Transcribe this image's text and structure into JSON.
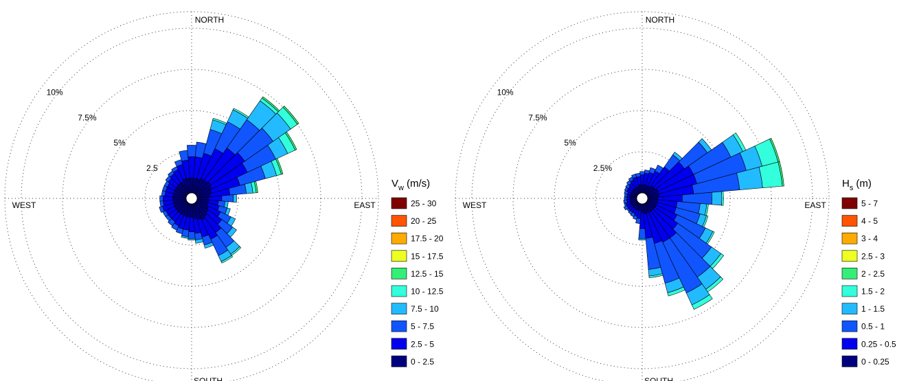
{
  "chart_data": [
    {
      "type": "windrose",
      "quantity": "V",
      "quantity_sub": "w",
      "unit": "(m/s)",
      "directions": {
        "north": "NORTH",
        "east": "EAST",
        "south": "SOUTH",
        "west": "WEST"
      },
      "ring_labels": [
        "2.5",
        "5%",
        "7.5%",
        "10%"
      ],
      "ring_values": [
        2.5,
        5,
        7.5,
        10
      ],
      "rmax": 11,
      "legend_bins": [
        "25 - 30",
        "20 - 25",
        "17.5 - 20",
        "15 - 17.5",
        "12.5 - 15",
        "10 - 12.5",
        "7.5 - 10",
        "5 - 7.5",
        "2.5 - 5",
        "0 - 2.5"
      ],
      "legend_colors": [
        "#7f0000",
        "#ff5500",
        "#ffaa00",
        "#eeff22",
        "#33ee77",
        "#33ffdd",
        "#22bbff",
        "#1155ff",
        "#0000ee",
        "#00007f"
      ],
      "sector_width_deg": 10,
      "sectors": [
        {
          "dir": 0,
          "cum": [
            0.9,
            2.2,
            2.9
          ]
        },
        {
          "dir": 10,
          "cum": [
            0.9,
            2.2,
            3.1
          ]
        },
        {
          "dir": 20,
          "cum": [
            0.9,
            2.5,
            4.0,
            4.6,
            4.7
          ]
        },
        {
          "dir": 30,
          "cum": [
            1.0,
            3.0,
            4.8,
            5.6,
            5.7
          ]
        },
        {
          "dir": 40,
          "cum": [
            1.0,
            3.4,
            5.5,
            6.9,
            7.1,
            7.2
          ]
        },
        {
          "dir": 50,
          "cum": [
            1.1,
            3.6,
            5.7,
            7.0,
            7.5,
            7.6
          ]
        },
        {
          "dir": 60,
          "cum": [
            1.0,
            3.4,
            5.3,
            6.1,
            6.6,
            6.7
          ]
        },
        {
          "dir": 70,
          "cum": [
            0.9,
            2.7,
            4.3,
            5.0,
            5.3,
            5.4
          ]
        },
        {
          "dir": 80,
          "cum": [
            0.8,
            2.0,
            3.0,
            3.4,
            3.6,
            3.7
          ]
        },
        {
          "dir": 90,
          "cum": [
            0.7,
            1.5,
            2.2,
            2.4
          ]
        },
        {
          "dir": 100,
          "cum": [
            0.7,
            1.3,
            1.7,
            1.9
          ]
        },
        {
          "dir": 110,
          "cum": [
            0.7,
            1.4,
            1.9,
            2.1
          ]
        },
        {
          "dir": 120,
          "cum": [
            0.8,
            1.6,
            2.3,
            2.6
          ]
        },
        {
          "dir": 130,
          "cum": [
            0.9,
            1.9,
            2.7,
            3.0
          ]
        },
        {
          "dir": 140,
          "cum": [
            1.0,
            2.2,
            3.3,
            3.8,
            3.9
          ]
        },
        {
          "dir": 150,
          "cum": [
            1.1,
            2.4,
            3.5,
            3.9,
            4.0
          ]
        },
        {
          "dir": 160,
          "cum": [
            1.0,
            2.1,
            2.6,
            2.8
          ]
        },
        {
          "dir": 170,
          "cum": [
            0.9,
            1.8,
            2.2,
            2.4
          ]
        },
        {
          "dir": 180,
          "cum": [
            0.8,
            1.7,
            2.1,
            2.2
          ]
        },
        {
          "dir": 190,
          "cum": [
            0.8,
            1.6,
            2.0,
            2.1
          ]
        },
        {
          "dir": 200,
          "cum": [
            0.8,
            1.6,
            1.9
          ]
        },
        {
          "dir": 210,
          "cum": [
            0.8,
            1.5,
            1.8
          ]
        },
        {
          "dir": 220,
          "cum": [
            0.8,
            1.4,
            1.7
          ]
        },
        {
          "dir": 230,
          "cum": [
            0.8,
            1.4,
            1.6
          ]
        },
        {
          "dir": 240,
          "cum": [
            0.8,
            1.4,
            1.6
          ]
        },
        {
          "dir": 250,
          "cum": [
            0.8,
            1.5,
            1.7
          ]
        },
        {
          "dir": 260,
          "cum": [
            0.8,
            1.4,
            1.6
          ]
        },
        {
          "dir": 270,
          "cum": [
            0.8,
            1.4,
            1.6
          ]
        },
        {
          "dir": 280,
          "cum": [
            0.8,
            1.3,
            1.5
          ]
        },
        {
          "dir": 290,
          "cum": [
            0.8,
            1.3,
            1.5
          ]
        },
        {
          "dir": 300,
          "cum": [
            0.8,
            1.3,
            1.5
          ]
        },
        {
          "dir": 310,
          "cum": [
            0.8,
            1.4,
            1.6
          ]
        },
        {
          "dir": 320,
          "cum": [
            0.8,
            1.5,
            1.7
          ]
        },
        {
          "dir": 330,
          "cum": [
            0.8,
            1.6,
            1.8
          ]
        },
        {
          "dir": 340,
          "cum": [
            0.9,
            1.8,
            2.1
          ]
        },
        {
          "dir": 350,
          "cum": [
            0.9,
            2.0,
            2.6
          ]
        }
      ]
    },
    {
      "type": "windrose",
      "quantity": "H",
      "quantity_sub": "s",
      "unit": "(m)",
      "directions": {
        "north": "NORTH",
        "east": "EAST",
        "south": "SOUTH",
        "west": "WEST"
      },
      "ring_labels": [
        "2.5%",
        "5%",
        "7.5%",
        "10%"
      ],
      "ring_values": [
        2.5,
        5,
        7.5,
        10
      ],
      "rmax": 11,
      "legend_bins": [
        "5 - 7",
        "4 - 5",
        "3 - 4",
        "2.5 - 3",
        "2 - 2.5",
        "1.5 - 2",
        "1 - 1.5",
        "0.5 - 1",
        "0.25 - 0.5",
        "0 - 0.25"
      ],
      "legend_colors": [
        "#7f0000",
        "#ff5500",
        "#ffaa00",
        "#eeff22",
        "#33ee77",
        "#33ffdd",
        "#22bbff",
        "#1155ff",
        "#0000ee",
        "#00007f"
      ],
      "sector_width_deg": 10,
      "sectors": [
        {
          "dir": 0,
          "cum": [
            0.5,
            1.1,
            1.3
          ]
        },
        {
          "dir": 10,
          "cum": [
            0.5,
            1.2,
            1.4
          ]
        },
        {
          "dir": 20,
          "cum": [
            0.5,
            1.3,
            1.6
          ]
        },
        {
          "dir": 30,
          "cum": [
            0.5,
            1.5,
            1.9
          ]
        },
        {
          "dir": 40,
          "cum": [
            0.6,
            2.0,
            2.9,
            3.1
          ]
        },
        {
          "dir": 50,
          "cum": [
            0.6,
            2.8,
            4.5,
            4.8
          ]
        },
        {
          "dir": 60,
          "cum": [
            0.7,
            3.1,
            5.6,
            6.4,
            6.6
          ]
        },
        {
          "dir": 70,
          "cum": [
            0.7,
            3.1,
            6.2,
            7.2,
            8.2,
            8.3
          ]
        },
        {
          "dir": 80,
          "cum": [
            0.7,
            2.8,
            5.6,
            7.0,
            8.2,
            8.3
          ]
        },
        {
          "dir": 90,
          "cum": [
            0.6,
            2.1,
            3.9,
            4.5,
            4.6
          ]
        },
        {
          "dir": 100,
          "cum": [
            0.6,
            1.8,
            3.2,
            3.6,
            3.7
          ]
        },
        {
          "dir": 110,
          "cum": [
            0.6,
            1.8,
            3.3,
            3.7,
            3.8
          ]
        },
        {
          "dir": 120,
          "cum": [
            0.6,
            2.0,
            3.9,
            4.4,
            4.5
          ]
        },
        {
          "dir": 130,
          "cum": [
            0.6,
            2.3,
            4.8,
            5.5,
            5.7
          ]
        },
        {
          "dir": 140,
          "cum": [
            0.6,
            2.6,
            5.5,
            6.4,
            6.6
          ]
        },
        {
          "dir": 150,
          "cum": [
            0.6,
            2.6,
            6.0,
            6.8,
            7.1
          ]
        },
        {
          "dir": 160,
          "cum": [
            0.6,
            2.5,
            5.0,
            5.6,
            5.8
          ]
        },
        {
          "dir": 170,
          "cum": [
            0.6,
            2.1,
            4.0,
            4.4,
            4.5
          ]
        },
        {
          "dir": 180,
          "cum": [
            0.5,
            1.5,
            2.1,
            2.2
          ]
        },
        {
          "dir": 190,
          "cum": [
            0.4,
            0.9,
            1.2
          ]
        },
        {
          "dir": 200,
          "cum": [
            0.4,
            0.8,
            1.0
          ]
        },
        {
          "dir": 210,
          "cum": [
            0.4,
            0.7,
            0.9
          ]
        },
        {
          "dir": 220,
          "cum": [
            0.4,
            0.7,
            0.85
          ]
        },
        {
          "dir": 230,
          "cum": [
            0.4,
            0.7,
            0.8
          ]
        },
        {
          "dir": 240,
          "cum": [
            0.4,
            0.7,
            0.9
          ]
        },
        {
          "dir": 250,
          "cum": [
            0.4,
            0.7,
            0.8
          ]
        },
        {
          "dir": 260,
          "cum": [
            0.4,
            0.6,
            0.8
          ]
        },
        {
          "dir": 270,
          "cum": [
            0.4,
            0.6,
            0.75
          ]
        },
        {
          "dir": 280,
          "cum": [
            0.4,
            0.6,
            0.75
          ]
        },
        {
          "dir": 290,
          "cum": [
            0.4,
            0.6,
            0.8
          ]
        },
        {
          "dir": 300,
          "cum": [
            0.4,
            0.7,
            0.85
          ]
        },
        {
          "dir": 310,
          "cum": [
            0.4,
            0.7,
            0.9
          ]
        },
        {
          "dir": 320,
          "cum": [
            0.4,
            0.8,
            1.0
          ]
        },
        {
          "dir": 330,
          "cum": [
            0.4,
            0.9,
            1.1
          ]
        },
        {
          "dir": 340,
          "cum": [
            0.4,
            1.0,
            1.2
          ]
        },
        {
          "dir": 350,
          "cum": [
            0.5,
            1.0,
            1.2
          ]
        }
      ]
    }
  ]
}
